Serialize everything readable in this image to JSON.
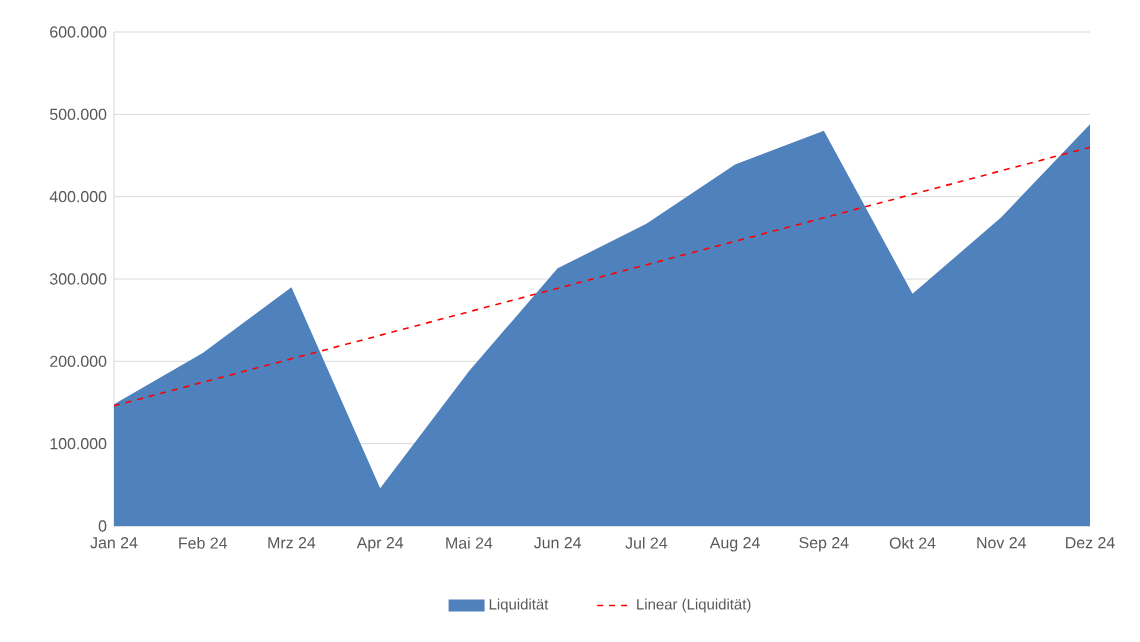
{
  "chart_data": {
    "type": "area",
    "categories": [
      "Jan 24",
      "Feb 24",
      "Mrz 24",
      "Apr 24",
      "Mai 24",
      "Jun 24",
      "Jul 24",
      "Aug 24",
      "Sep 24",
      "Okt 24",
      "Nov 24",
      "Dez 24"
    ],
    "series": [
      {
        "name": "Liquidität",
        "color": "#4f81bd",
        "values": [
          148000,
          210000,
          290000,
          46000,
          188000,
          313000,
          367000,
          439000,
          480000,
          282000,
          375000,
          488000
        ]
      },
      {
        "name": "Linear (Liquidität)",
        "type": "line",
        "line_style": "dashed",
        "color": "#ff0000",
        "x": [
          "Jan 24",
          "Dez 24"
        ],
        "values": [
          146000,
          460000
        ]
      }
    ],
    "ylim": [
      0,
      600000
    ],
    "yticks": [
      {
        "value": 0,
        "label": "0"
      },
      {
        "value": 100000,
        "label": "100.000"
      },
      {
        "value": 200000,
        "label": "200.000"
      },
      {
        "value": 300000,
        "label": "300.000"
      },
      {
        "value": 400000,
        "label": "400.000"
      },
      {
        "value": 500000,
        "label": "500.000"
      },
      {
        "value": 600000,
        "label": "600.000"
      }
    ],
    "grid": "y",
    "legend": "bottom"
  }
}
